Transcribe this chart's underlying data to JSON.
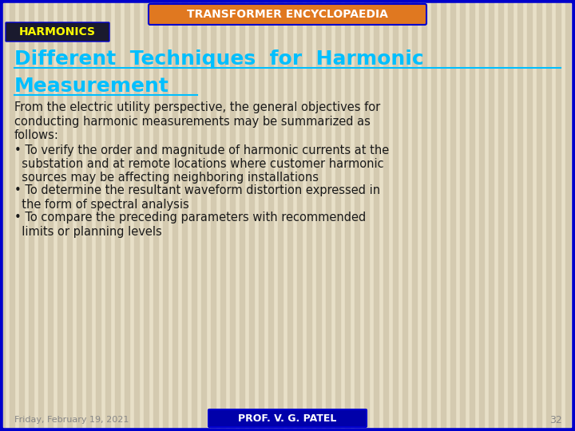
{
  "bg_color": "#E8E0C8",
  "border_color": "#0000CC",
  "stripe_color": "#D4CAB0",
  "title_bar_text": "TRANSFORMER ENCYCLOPAEDIA",
  "title_bar_bg": "#E07820",
  "title_bar_text_color": "#FFFFFF",
  "harmonics_label": "HARMONICS",
  "harmonics_bg": "#1A1A2E",
  "harmonics_text_color": "#FFFF00",
  "heading_line1": "Different  Techniques  for  Harmonic",
  "heading_line2": "Measurement",
  "heading_color": "#00BFFF",
  "footer_date": "Friday, February 19, 2021",
  "footer_name": "PROF. V. G. PATEL",
  "footer_name_bg": "#0000AA",
  "footer_name_text_color": "#FFFFFF",
  "footer_page": "32",
  "footer_color": "#888888",
  "text_color": "#1A1A1A",
  "body_lines": [
    "From the electric utility perspective, the general objectives for",
    "conducting harmonic measurements may be summarized as",
    "follows:"
  ],
  "bullet_lines": [
    "• To verify the order and magnitude of harmonic currents at the",
    "  substation and at remote locations where customer harmonic",
    "  sources may be affecting neighboring installations",
    "• To determine the resultant waveform distortion expressed in",
    "  the form of spectral analysis",
    "• To compare the preceding parameters with recommended",
    "  limits or planning levels"
  ]
}
